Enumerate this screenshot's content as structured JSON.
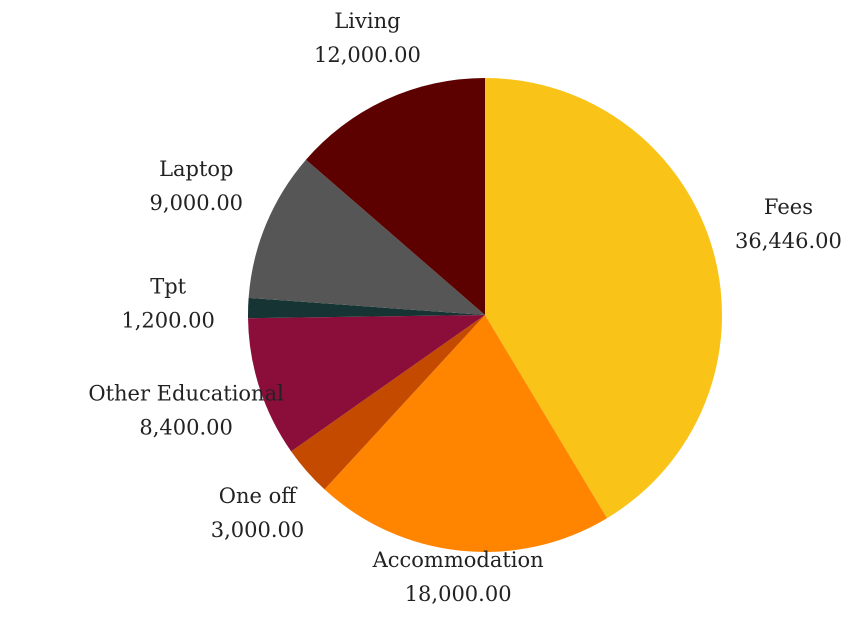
{
  "chart_data": {
    "type": "pie",
    "categories": [
      "Fees",
      "Accommodation",
      "One off",
      "Other Educational",
      "Tpt",
      "Laptop",
      "Living"
    ],
    "values": [
      36446,
      18000,
      3000,
      8400,
      1200,
      9000,
      12000
    ],
    "value_labels": [
      "36,446.00",
      "18,000.00",
      "3,000.00",
      "8,400.00",
      "1,200.00",
      "9,000.00",
      "12,000.00"
    ],
    "colors": [
      "#f9c318",
      "#ff8500",
      "#c44a00",
      "#8b0d3a",
      "#173434",
      "#565656",
      "#5c0000"
    ]
  }
}
